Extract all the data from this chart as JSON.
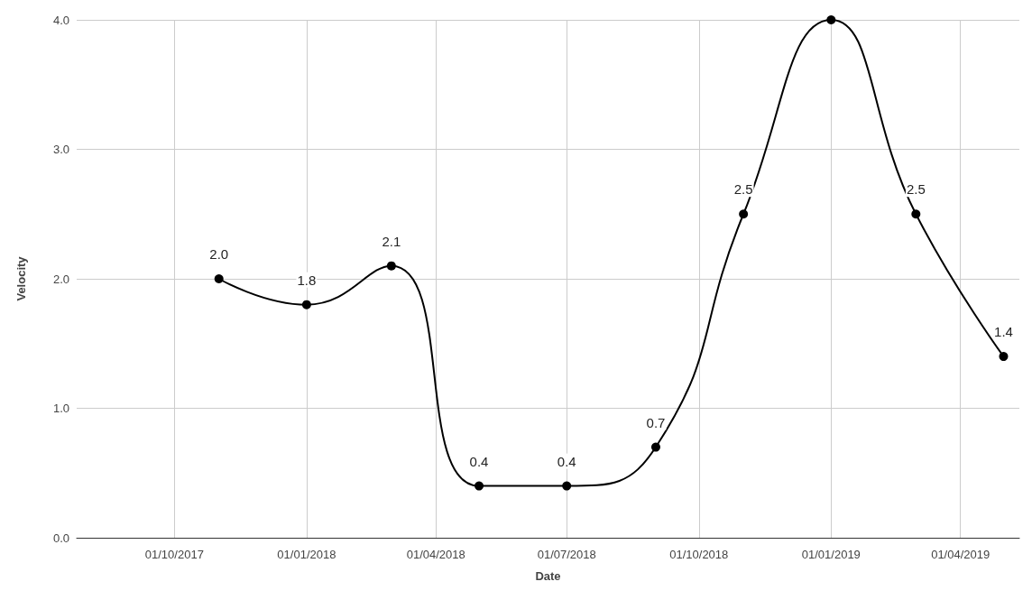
{
  "chart_data": {
    "type": "line",
    "xlabel": "Date",
    "ylabel": "Velocity",
    "x": [
      "2017-11-01",
      "2018-01-01",
      "2018-03-01",
      "2018-05-01",
      "2018-07-01",
      "2018-09-01",
      "2018-11-01",
      "2019-01-01",
      "2019-03-01",
      "2019-05-01"
    ],
    "series": [
      {
        "color": "#000000",
        "values": [
          2.0,
          1.8,
          2.1,
          0.4,
          0.4,
          0.7,
          2.5,
          4.0,
          2.5,
          1.4
        ],
        "value_labels": [
          "2.0",
          "1.8",
          "2.1",
          "0.4",
          "0.4",
          "0.7",
          "2.5",
          null,
          "2.5",
          "1.4"
        ]
      }
    ],
    "xlim": [
      "2017-07-25",
      "2019-05-12"
    ],
    "xticks": [
      {
        "value": "2017-10-01",
        "label": "01/10/2017"
      },
      {
        "value": "2018-01-01",
        "label": "01/01/2018"
      },
      {
        "value": "2018-04-01",
        "label": "01/04/2018"
      },
      {
        "value": "2018-07-01",
        "label": "01/07/2018"
      },
      {
        "value": "2018-10-01",
        "label": "01/10/2018"
      },
      {
        "value": "2019-01-01",
        "label": "01/01/2019"
      },
      {
        "value": "2019-04-01",
        "label": "01/04/2019"
      }
    ],
    "ylim": [
      0,
      4
    ],
    "yticks": [
      {
        "value": 0,
        "label": "0.0"
      },
      {
        "value": 1,
        "label": "1.0"
      },
      {
        "value": 2,
        "label": "2.0"
      },
      {
        "value": 3,
        "label": "3.0"
      },
      {
        "value": 4,
        "label": "4.0"
      }
    ],
    "grid": true,
    "marker": "circle",
    "line_style": "solid"
  }
}
